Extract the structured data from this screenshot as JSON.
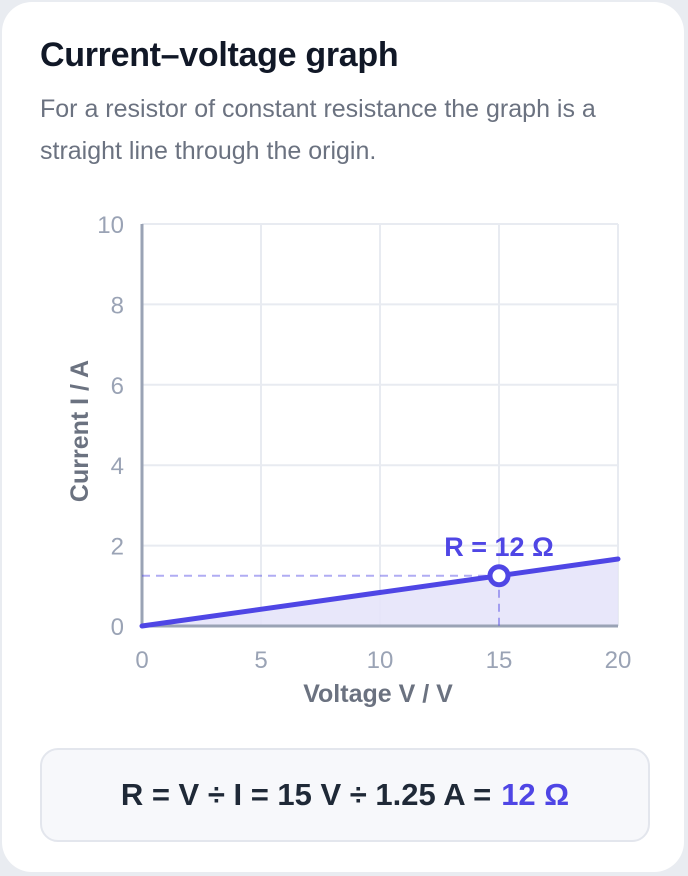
{
  "card": {
    "title": "Current–voltage graph",
    "subtitle": "For a resistor of constant resistance the graph is a straight line through the origin."
  },
  "colors": {
    "accent": "#4f46e5",
    "fill": "#e6e4fa",
    "axis": "#9aa3b5",
    "grid": "#e8ebf1",
    "tick": "#9aa3b5",
    "axis_label": "#6b7280"
  },
  "chart_data": {
    "type": "line",
    "xlabel": "Voltage V / V",
    "ylabel": "Current I / A",
    "xlim": [
      0,
      20
    ],
    "ylim": [
      0,
      10
    ],
    "x_ticks": [
      0,
      5,
      10,
      15,
      20
    ],
    "y_ticks": [
      0,
      2,
      4,
      6,
      8,
      10
    ],
    "grid": true,
    "series": [
      {
        "x": [
          0,
          20
        ],
        "y": [
          0,
          1.667
        ]
      }
    ],
    "highlight_point": {
      "x": 15,
      "y": 1.25,
      "label": "R = 12 Ω"
    }
  },
  "formula": {
    "expression": "R = V ÷ I = 15 V ÷ 1.25 A =",
    "result": "12 Ω"
  }
}
